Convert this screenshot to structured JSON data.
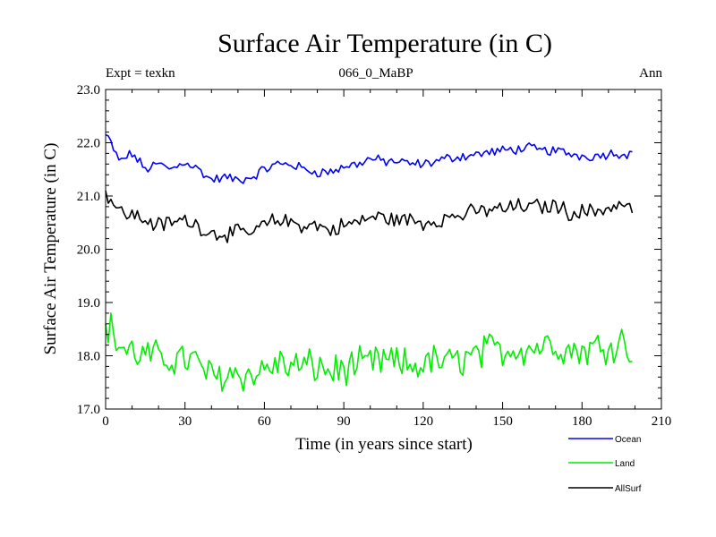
{
  "chart_data": {
    "type": "line",
    "title": "Surface Air Temperature (in C)",
    "subtitle": "066_0_MaBP",
    "left_label": "Expt = texkn",
    "right_label": "Ann",
    "xlabel": "Time (in years since start)",
    "ylabel": "Surface Air Temperature (in C)",
    "xlim": [
      0,
      210
    ],
    "ylim": [
      17.0,
      23.0
    ],
    "x_ticks": [
      0,
      30,
      60,
      90,
      120,
      150,
      180,
      210
    ],
    "x_tick_labels": [
      "0",
      "30",
      "60",
      "90",
      "120",
      "150",
      "180",
      "210"
    ],
    "y_ticks": [
      17.0,
      18.0,
      19.0,
      20.0,
      21.0,
      22.0,
      23.0
    ],
    "y_tick_labels": [
      "17.0",
      "18.0",
      "19.0",
      "20.0",
      "21.0",
      "22.0",
      "23.0"
    ],
    "legend_position": "bottom-right",
    "series": [
      {
        "name": "Ocean",
        "color": "#0000ff",
        "keypoints": [
          [
            0,
            22.15
          ],
          [
            2,
            22.0
          ],
          [
            5,
            21.65
          ],
          [
            10,
            21.8
          ],
          [
            15,
            21.5
          ],
          [
            20,
            21.6
          ],
          [
            25,
            21.5
          ],
          [
            30,
            21.65
          ],
          [
            35,
            21.5
          ],
          [
            40,
            21.3
          ],
          [
            45,
            21.35
          ],
          [
            50,
            21.3
          ],
          [
            55,
            21.35
          ],
          [
            60,
            21.5
          ],
          [
            65,
            21.6
          ],
          [
            70,
            21.6
          ],
          [
            75,
            21.5
          ],
          [
            80,
            21.45
          ],
          [
            85,
            21.45
          ],
          [
            90,
            21.55
          ],
          [
            95,
            21.6
          ],
          [
            100,
            21.7
          ],
          [
            105,
            21.65
          ],
          [
            110,
            21.65
          ],
          [
            115,
            21.6
          ],
          [
            120,
            21.6
          ],
          [
            125,
            21.65
          ],
          [
            130,
            21.72
          ],
          [
            135,
            21.75
          ],
          [
            140,
            21.78
          ],
          [
            145,
            21.82
          ],
          [
            150,
            21.85
          ],
          [
            155,
            21.88
          ],
          [
            160,
            21.9
          ],
          [
            165,
            21.85
          ],
          [
            170,
            21.85
          ],
          [
            175,
            21.8
          ],
          [
            180,
            21.75
          ],
          [
            185,
            21.75
          ],
          [
            190,
            21.8
          ],
          [
            195,
            21.8
          ],
          [
            199,
            21.8
          ]
        ],
        "noise": 0.08
      },
      {
        "name": "Land",
        "color": "#00ee00",
        "keypoints": [
          [
            0,
            18.6
          ],
          [
            2,
            18.5
          ],
          [
            5,
            18.2
          ],
          [
            10,
            18.05
          ],
          [
            15,
            18.0
          ],
          [
            20,
            17.95
          ],
          [
            25,
            17.95
          ],
          [
            30,
            17.95
          ],
          [
            35,
            17.85
          ],
          [
            40,
            17.6
          ],
          [
            45,
            17.65
          ],
          [
            50,
            17.7
          ],
          [
            55,
            17.6
          ],
          [
            60,
            17.75
          ],
          [
            65,
            17.85
          ],
          [
            70,
            17.8
          ],
          [
            75,
            17.8
          ],
          [
            80,
            17.8
          ],
          [
            85,
            17.7
          ],
          [
            90,
            17.75
          ],
          [
            95,
            17.8
          ],
          [
            100,
            17.85
          ],
          [
            105,
            17.9
          ],
          [
            110,
            17.85
          ],
          [
            115,
            17.8
          ],
          [
            120,
            17.85
          ],
          [
            125,
            17.9
          ],
          [
            130,
            17.85
          ],
          [
            135,
            17.95
          ],
          [
            140,
            18.0
          ],
          [
            145,
            18.1
          ],
          [
            150,
            18.1
          ],
          [
            155,
            18.15
          ],
          [
            160,
            18.15
          ],
          [
            165,
            18.2
          ],
          [
            170,
            18.25
          ],
          [
            175,
            18.1
          ],
          [
            180,
            18.1
          ],
          [
            185,
            18.15
          ],
          [
            190,
            18.2
          ],
          [
            195,
            18.3
          ],
          [
            199,
            18.05
          ]
        ],
        "noise": 0.28
      },
      {
        "name": "AllSurf",
        "color": "#000000",
        "keypoints": [
          [
            0,
            21.1
          ],
          [
            2,
            20.95
          ],
          [
            5,
            20.7
          ],
          [
            10,
            20.65
          ],
          [
            15,
            20.55
          ],
          [
            20,
            20.45
          ],
          [
            25,
            20.5
          ],
          [
            30,
            20.55
          ],
          [
            35,
            20.45
          ],
          [
            40,
            20.3
          ],
          [
            45,
            20.3
          ],
          [
            50,
            20.3
          ],
          [
            55,
            20.3
          ],
          [
            60,
            20.45
          ],
          [
            65,
            20.55
          ],
          [
            70,
            20.5
          ],
          [
            75,
            20.45
          ],
          [
            80,
            20.45
          ],
          [
            85,
            20.35
          ],
          [
            90,
            20.45
          ],
          [
            95,
            20.5
          ],
          [
            100,
            20.6
          ],
          [
            105,
            20.6
          ],
          [
            110,
            20.55
          ],
          [
            115,
            20.55
          ],
          [
            120,
            20.5
          ],
          [
            125,
            20.55
          ],
          [
            130,
            20.6
          ],
          [
            135,
            20.65
          ],
          [
            140,
            20.7
          ],
          [
            145,
            20.75
          ],
          [
            150,
            20.75
          ],
          [
            155,
            20.8
          ],
          [
            160,
            20.8
          ],
          [
            165,
            20.8
          ],
          [
            170,
            20.82
          ],
          [
            175,
            20.7
          ],
          [
            180,
            20.7
          ],
          [
            185,
            20.72
          ],
          [
            190,
            20.78
          ],
          [
            195,
            20.85
          ],
          [
            199,
            20.75
          ]
        ],
        "noise": 0.13
      }
    ]
  }
}
